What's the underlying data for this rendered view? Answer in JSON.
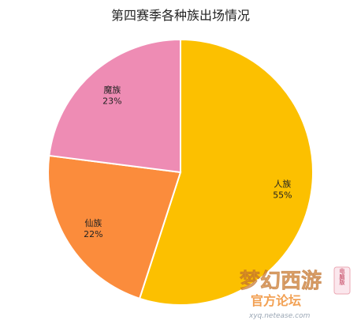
{
  "chart_data": {
    "type": "pie",
    "title": "第四赛季各种族出场情况",
    "slices": [
      {
        "label": "人族",
        "value": 55,
        "value_text": "55%",
        "color": "#fcc000"
      },
      {
        "label": "仙族",
        "value": 22,
        "value_text": "22%",
        "color": "#fb8c3c"
      },
      {
        "label": "魔族",
        "value": 23,
        "value_text": "23%",
        "color": "#ee8cb4"
      }
    ],
    "start_angle_deg": 0,
    "direction": "clockwise",
    "legend": "none",
    "slice_border_color": "#ffffff"
  },
  "watermark": {
    "logo_text": "梦幻西游",
    "badge_text": "电脑版",
    "subtitle": "官方论坛",
    "url": "xyq.netease.com",
    "colors": {
      "logo": "#f4a84a",
      "badge": "#e89aa8",
      "subtitle": "#f08a2a",
      "url": "#9aa6b4"
    }
  }
}
